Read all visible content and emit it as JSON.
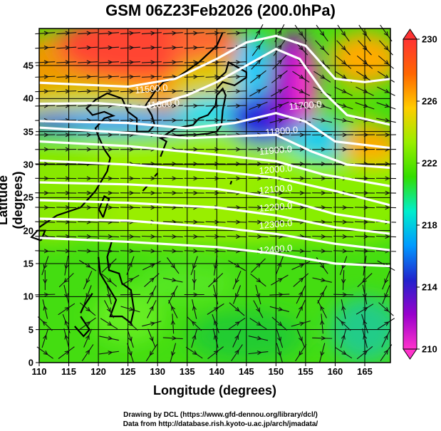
{
  "title": "GSM 06Z23Feb2026 (200.0hPa)",
  "xlabel": "Longitude (degrees)",
  "ylabel": "Latitude  (degrees)",
  "x_ticks": [
    "110",
    "115",
    "120",
    "125",
    "130",
    "135",
    "140",
    "145",
    "150",
    "155",
    "160",
    "165"
  ],
  "y_ticks": [
    "0",
    "5",
    "10",
    "15",
    "20",
    "25",
    "30",
    "35",
    "40",
    "45"
  ],
  "colorbar": {
    "ticks": [
      "210",
      "214",
      "218",
      "222",
      "226",
      "230"
    ],
    "range": [
      210,
      230
    ],
    "colors": [
      "#ff33cc",
      "#9900cc",
      "#2222cc",
      "#0099ff",
      "#00eecc",
      "#33dd00",
      "#99ee00",
      "#ffcc00",
      "#ff6600",
      "#ff3333"
    ]
  },
  "credits": [
    "Drawing by DCL (https://www.gfd-dennou.org/library/dcl/)",
    "Data from http://database.rish.kyoto-u.ac.jp/arch/jmadata/"
  ],
  "contours": [
    {
      "label": "11500.0",
      "pts": [
        [
          110,
          42.4
        ],
        [
          125,
          41.8
        ],
        [
          133,
          43
        ],
        [
          140,
          46
        ],
        [
          145,
          48.5
        ],
        [
          150,
          49.5
        ],
        [
          155,
          48
        ],
        [
          160,
          43
        ],
        [
          165,
          42.5
        ],
        [
          169.5,
          43
        ]
      ]
    },
    {
      "label": "11600.0",
      "pts": [
        [
          110,
          39.2
        ],
        [
          120,
          39.3
        ],
        [
          128,
          38.7
        ],
        [
          135,
          40.5
        ],
        [
          140,
          42.5
        ],
        [
          145,
          45
        ],
        [
          150,
          47.5
        ],
        [
          154,
          46
        ],
        [
          158,
          41
        ],
        [
          162,
          37.5
        ],
        [
          169.5,
          36
        ]
      ]
    },
    {
      "label": "11700.0",
      "pts": [
        [
          110,
          36.6
        ],
        [
          125,
          36.3
        ],
        [
          135,
          35.5
        ],
        [
          143,
          36.3
        ],
        [
          150,
          37.8
        ],
        [
          155,
          36.5
        ],
        [
          160,
          33.5
        ],
        [
          169.5,
          32.5
        ]
      ]
    },
    {
      "label": "11800.0",
      "pts": [
        [
          110,
          35.6
        ],
        [
          125,
          34.8
        ],
        [
          135,
          34
        ],
        [
          143,
          34.3
        ],
        [
          150,
          34.5
        ],
        [
          156,
          32
        ],
        [
          162,
          30
        ],
        [
          169.5,
          29.5
        ]
      ]
    },
    {
      "label": "11900.0",
      "pts": [
        [
          110,
          33.5
        ],
        [
          125,
          32.8
        ],
        [
          140,
          31.5
        ],
        [
          150,
          30.5
        ],
        [
          158,
          28.5
        ],
        [
          169.5,
          26.7
        ]
      ]
    },
    {
      "label": "12000.0",
      "pts": [
        [
          110,
          30.6
        ],
        [
          125,
          30
        ],
        [
          140,
          29
        ],
        [
          150,
          28
        ],
        [
          160,
          26
        ],
        [
          169.5,
          23.8
        ]
      ]
    },
    {
      "label": "12100.0",
      "pts": [
        [
          110,
          27.3
        ],
        [
          125,
          27
        ],
        [
          140,
          26.3
        ],
        [
          150,
          25
        ],
        [
          160,
          22.5
        ],
        [
          169.5,
          21.2
        ]
      ]
    },
    {
      "label": "12200.0",
      "pts": [
        [
          110,
          24.6
        ],
        [
          125,
          24.2
        ],
        [
          140,
          23.5
        ],
        [
          150,
          22.3
        ],
        [
          160,
          20.5
        ],
        [
          169.5,
          19.5
        ]
      ]
    },
    {
      "label": "12300.0",
      "pts": [
        [
          110,
          21.8
        ],
        [
          125,
          21.5
        ],
        [
          140,
          20.5
        ],
        [
          150,
          19.5
        ],
        [
          160,
          18
        ],
        [
          169.5,
          17
        ]
      ]
    },
    {
      "label": "12400.0",
      "pts": [
        [
          110,
          18.9
        ],
        [
          125,
          18.3
        ],
        [
          140,
          17.5
        ],
        [
          150,
          16.5
        ],
        [
          160,
          15
        ],
        [
          169.5,
          14.6
        ]
      ]
    }
  ],
  "label_positions": [
    [
      129,
      41
    ],
    [
      131,
      38.7
    ],
    [
      155,
      38.5
    ],
    [
      151,
      34.6
    ],
    [
      150,
      31.7
    ],
    [
      150,
      28.8
    ],
    [
      150,
      25.8
    ],
    [
      150,
      23.1
    ],
    [
      150,
      20.5
    ],
    [
      150,
      16.7
    ]
  ]
}
